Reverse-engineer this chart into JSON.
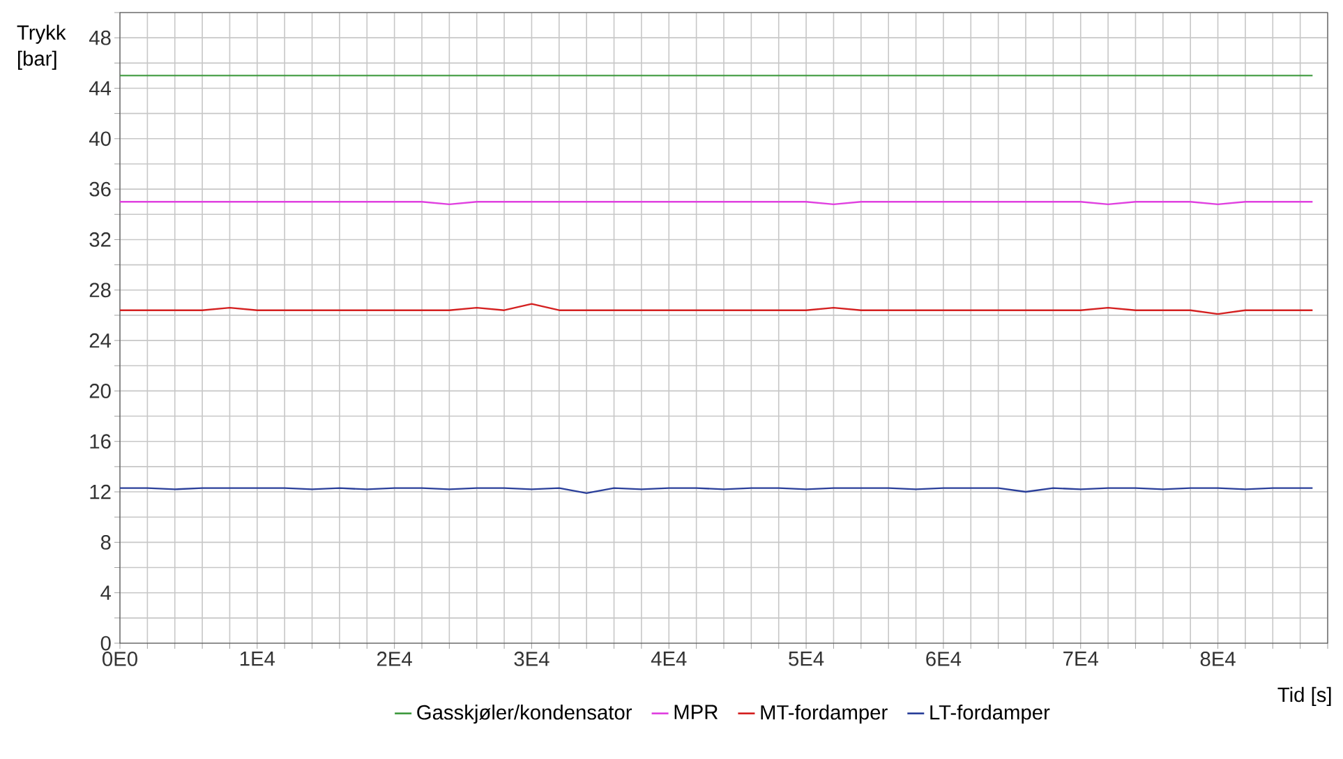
{
  "chart_data": {
    "type": "line",
    "ylabel": "Trykk [bar]",
    "xlabel": "Tid [s]",
    "x": [
      0,
      2000,
      4000,
      6000,
      8000,
      10000,
      12000,
      14000,
      16000,
      18000,
      20000,
      22000,
      24000,
      26000,
      28000,
      30000,
      32000,
      34000,
      36000,
      38000,
      40000,
      42000,
      44000,
      46000,
      48000,
      50000,
      52000,
      54000,
      56000,
      58000,
      60000,
      62000,
      64000,
      66000,
      68000,
      70000,
      72000,
      74000,
      76000,
      78000,
      80000,
      82000,
      84000,
      86000,
      86900
    ],
    "series": [
      {
        "name": "Gasskjøler/kondensator",
        "color": "#3f9a3f",
        "values": [
          45.0,
          45.0,
          45.0,
          45.0,
          45.0,
          45.0,
          45.0,
          45.0,
          45.0,
          45.0,
          45.0,
          45.0,
          45.0,
          45.0,
          45.0,
          45.0,
          45.0,
          45.0,
          45.0,
          45.0,
          45.0,
          45.0,
          45.0,
          45.0,
          45.0,
          45.0,
          45.0,
          45.0,
          45.0,
          45.0,
          45.0,
          45.0,
          45.0,
          45.0,
          45.0,
          45.0,
          45.0,
          45.0,
          45.0,
          45.0,
          45.0,
          45.0,
          45.0,
          45.0,
          45.0
        ]
      },
      {
        "name": "MPR",
        "color": "#e040e0",
        "values": [
          35.0,
          35.0,
          35.0,
          35.0,
          35.0,
          35.0,
          35.0,
          35.0,
          35.0,
          35.0,
          35.0,
          35.0,
          34.8,
          35.0,
          35.0,
          35.0,
          35.0,
          35.0,
          35.0,
          35.0,
          35.0,
          35.0,
          35.0,
          35.0,
          35.0,
          35.0,
          34.8,
          35.0,
          35.0,
          35.0,
          35.0,
          35.0,
          35.0,
          35.0,
          35.0,
          35.0,
          34.8,
          35.0,
          35.0,
          35.0,
          34.8,
          35.0,
          35.0,
          35.0,
          35.0
        ]
      },
      {
        "name": "MT-fordamper",
        "color": "#d42020",
        "values": [
          26.4,
          26.4,
          26.4,
          26.4,
          26.6,
          26.4,
          26.4,
          26.4,
          26.4,
          26.4,
          26.4,
          26.4,
          26.4,
          26.6,
          26.4,
          26.9,
          26.4,
          26.4,
          26.4,
          26.4,
          26.4,
          26.4,
          26.4,
          26.4,
          26.4,
          26.4,
          26.6,
          26.4,
          26.4,
          26.4,
          26.4,
          26.4,
          26.4,
          26.4,
          26.4,
          26.4,
          26.6,
          26.4,
          26.4,
          26.4,
          26.1,
          26.4,
          26.4,
          26.4,
          26.4
        ]
      },
      {
        "name": "LT-fordamper",
        "color": "#2a3f9a",
        "values": [
          12.3,
          12.3,
          12.2,
          12.3,
          12.3,
          12.3,
          12.3,
          12.2,
          12.3,
          12.2,
          12.3,
          12.3,
          12.2,
          12.3,
          12.3,
          12.2,
          12.3,
          11.9,
          12.3,
          12.2,
          12.3,
          12.3,
          12.2,
          12.3,
          12.3,
          12.2,
          12.3,
          12.3,
          12.3,
          12.2,
          12.3,
          12.3,
          12.3,
          12.0,
          12.3,
          12.2,
          12.3,
          12.3,
          12.2,
          12.3,
          12.3,
          12.2,
          12.3,
          12.3,
          12.3
        ]
      }
    ],
    "xlim": [
      0,
      88000
    ],
    "ylim": [
      0,
      50
    ],
    "xticks": [
      {
        "value": 0,
        "label": "0E0"
      },
      {
        "value": 2000,
        "label": null
      },
      {
        "value": 4000,
        "label": null
      },
      {
        "value": 6000,
        "label": null
      },
      {
        "value": 8000,
        "label": null
      },
      {
        "value": 10000,
        "label": "1E4"
      },
      {
        "value": 12000,
        "label": null
      },
      {
        "value": 14000,
        "label": null
      },
      {
        "value": 16000,
        "label": null
      },
      {
        "value": 18000,
        "label": null
      },
      {
        "value": 20000,
        "label": "2E4"
      },
      {
        "value": 22000,
        "label": null
      },
      {
        "value": 24000,
        "label": null
      },
      {
        "value": 26000,
        "label": null
      },
      {
        "value": 28000,
        "label": null
      },
      {
        "value": 30000,
        "label": "3E4"
      },
      {
        "value": 32000,
        "label": null
      },
      {
        "value": 34000,
        "label": null
      },
      {
        "value": 36000,
        "label": null
      },
      {
        "value": 38000,
        "label": null
      },
      {
        "value": 40000,
        "label": "4E4"
      },
      {
        "value": 42000,
        "label": null
      },
      {
        "value": 44000,
        "label": null
      },
      {
        "value": 46000,
        "label": null
      },
      {
        "value": 48000,
        "label": null
      },
      {
        "value": 50000,
        "label": "5E4"
      },
      {
        "value": 52000,
        "label": null
      },
      {
        "value": 54000,
        "label": null
      },
      {
        "value": 56000,
        "label": null
      },
      {
        "value": 58000,
        "label": null
      },
      {
        "value": 60000,
        "label": "6E4"
      },
      {
        "value": 62000,
        "label": null
      },
      {
        "value": 64000,
        "label": null
      },
      {
        "value": 66000,
        "label": null
      },
      {
        "value": 68000,
        "label": null
      },
      {
        "value": 70000,
        "label": "7E4"
      },
      {
        "value": 72000,
        "label": null
      },
      {
        "value": 74000,
        "label": null
      },
      {
        "value": 76000,
        "label": null
      },
      {
        "value": 78000,
        "label": null
      },
      {
        "value": 80000,
        "label": "8E4"
      },
      {
        "value": 82000,
        "label": null
      },
      {
        "value": 84000,
        "label": null
      },
      {
        "value": 86000,
        "label": null
      },
      {
        "value": 88000,
        "label": null
      }
    ],
    "yticks": [
      0,
      {
        "value": 2,
        "label": null
      },
      4,
      {
        "value": 6,
        "label": null
      },
      8,
      {
        "value": 10,
        "label": null
      },
      12,
      {
        "value": 14,
        "label": null
      },
      16,
      {
        "value": 18,
        "label": null
      },
      20,
      {
        "value": 22,
        "label": null
      },
      24,
      {
        "value": 26,
        "label": null
      },
      28,
      {
        "value": 30,
        "label": null
      },
      32,
      {
        "value": 34,
        "label": null
      },
      36,
      {
        "value": 38,
        "label": null
      },
      40,
      {
        "value": 42,
        "label": null
      },
      44,
      {
        "value": 46,
        "label": null
      },
      48,
      {
        "value": 50,
        "label": null
      }
    ],
    "grid": true,
    "legend": "bottom",
    "marker": "none",
    "line_style": "solid"
  }
}
